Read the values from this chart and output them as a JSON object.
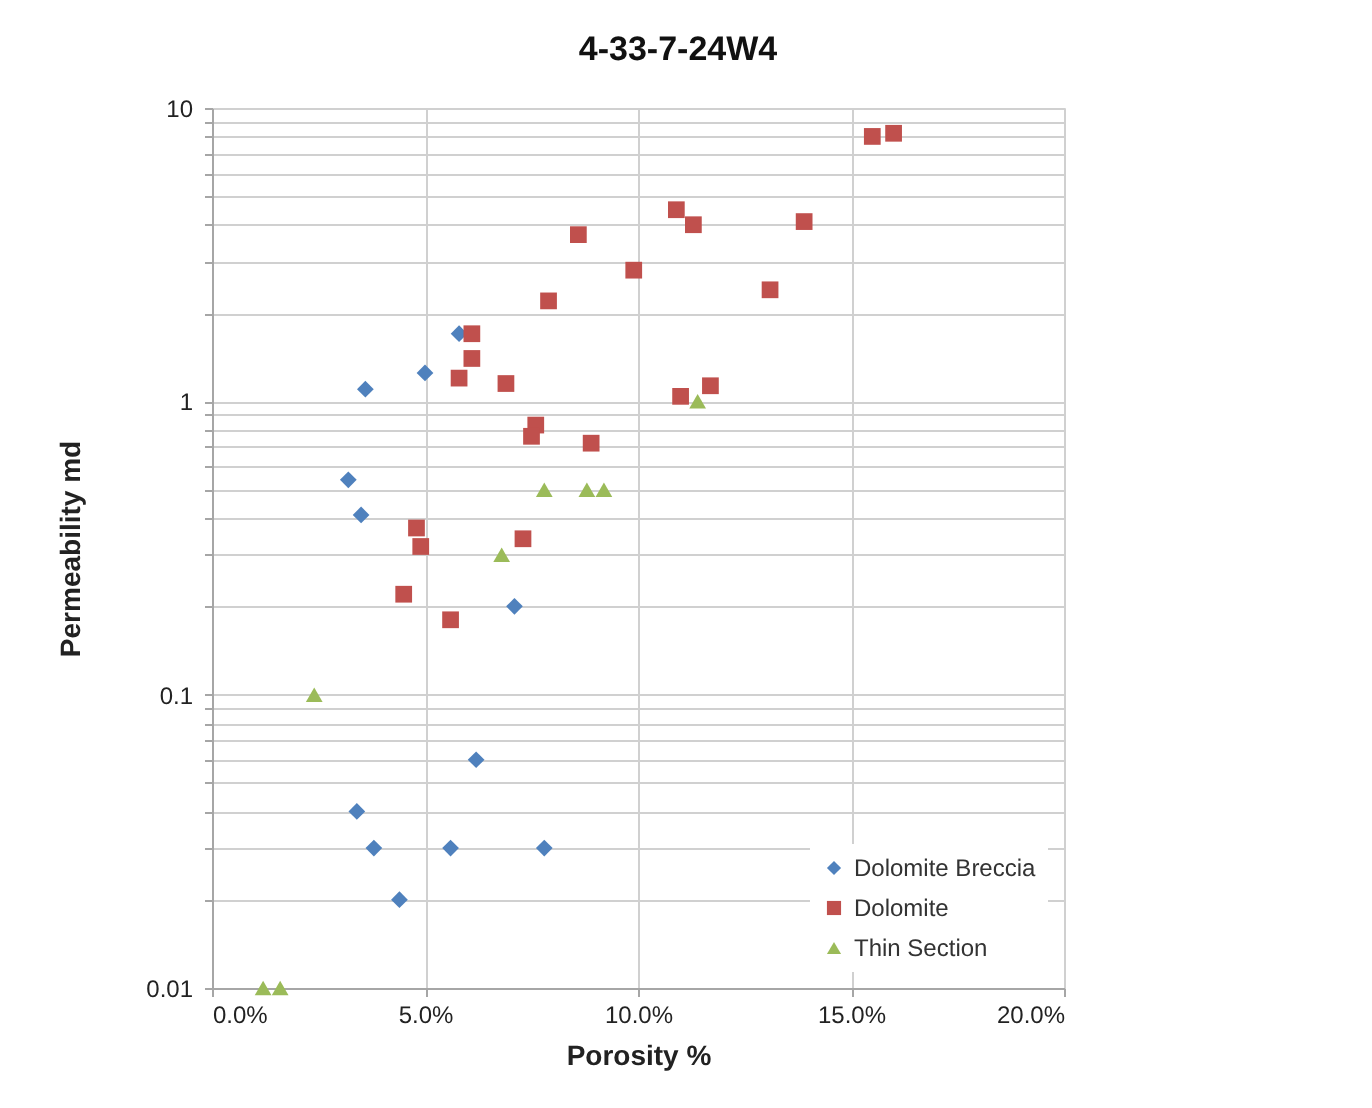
{
  "chart_data": {
    "type": "scatter",
    "title": "4-33-7-24W4",
    "xlabel": "Porosity %",
    "ylabel": "Permeability md",
    "xlim": [
      0,
      20
    ],
    "xticks": [
      {
        "value": 0,
        "label": "0.0%"
      },
      {
        "value": 5,
        "label": "5.0%"
      },
      {
        "value": 10,
        "label": "10.0%"
      },
      {
        "value": 15,
        "label": "15.0%"
      },
      {
        "value": 20,
        "label": "20.0%"
      }
    ],
    "ylim": [
      0.01,
      10
    ],
    "yticks": [
      0.01,
      {
        "value": 0.02,
        "label": null
      },
      {
        "value": 0.03,
        "label": null
      },
      {
        "value": 0.04,
        "label": null
      },
      {
        "value": 0.05,
        "label": null
      },
      {
        "value": 0.06,
        "label": null
      },
      {
        "value": 0.07,
        "label": null
      },
      {
        "value": 0.08,
        "label": null
      },
      {
        "value": 0.09,
        "label": null
      },
      0.1,
      {
        "value": 0.2,
        "label": null
      },
      {
        "value": 0.3,
        "label": null
      },
      {
        "value": 0.4,
        "label": null
      },
      {
        "value": 0.5,
        "label": null
      },
      {
        "value": 0.6,
        "label": null
      },
      {
        "value": 0.7,
        "label": null
      },
      {
        "value": 0.8,
        "label": null
      },
      {
        "value": 0.9,
        "label": null
      },
      1,
      {
        "value": 2,
        "label": null
      },
      {
        "value": 3,
        "label": null
      },
      {
        "value": 4,
        "label": null
      },
      {
        "value": 5,
        "label": null
      },
      {
        "value": 6,
        "label": null
      },
      {
        "value": 7,
        "label": null
      },
      {
        "value": 8,
        "label": null
      },
      {
        "value": 9,
        "label": null
      },
      10
    ],
    "log": true,
    "grid": true,
    "legend": "bottom right",
    "series": [
      {
        "name": "Dolomite Breccia",
        "color": "#4f81bd",
        "marker": "diamond",
        "x": [
          5.8,
          5.0,
          3.6,
          3.2,
          3.5,
          7.1,
          6.2,
          3.4,
          3.8,
          5.6,
          7.8,
          4.4
        ],
        "values": [
          1.7,
          1.25,
          1.1,
          0.54,
          0.41,
          0.2,
          0.06,
          0.04,
          0.03,
          0.03,
          0.03,
          0.02
        ]
      },
      {
        "name": "Dolomite",
        "color": "#c0504d",
        "marker": "square",
        "x": [
          15.5,
          16.0,
          10.9,
          11.3,
          13.9,
          8.6,
          9.9,
          13.1,
          7.9,
          6.1,
          6.1,
          5.8,
          6.9,
          11.0,
          11.7,
          7.6,
          7.5,
          8.9,
          4.8,
          4.9,
          7.3,
          4.5,
          5.6
        ],
        "values": [
          8.0,
          8.2,
          4.5,
          4.0,
          4.1,
          3.7,
          2.8,
          2.4,
          2.2,
          1.7,
          1.4,
          1.2,
          1.15,
          1.04,
          1.13,
          0.83,
          0.76,
          0.72,
          0.37,
          0.32,
          0.34,
          0.22,
          0.18
        ]
      },
      {
        "name": "Thin Section",
        "color": "#9bbb59",
        "marker": "triangle",
        "x": [
          11.4,
          7.8,
          8.8,
          9.2,
          6.8,
          2.4,
          1.2,
          1.6
        ],
        "values": [
          1.0,
          0.5,
          0.5,
          0.5,
          0.3,
          0.1,
          0.01,
          0.01
        ]
      }
    ]
  }
}
